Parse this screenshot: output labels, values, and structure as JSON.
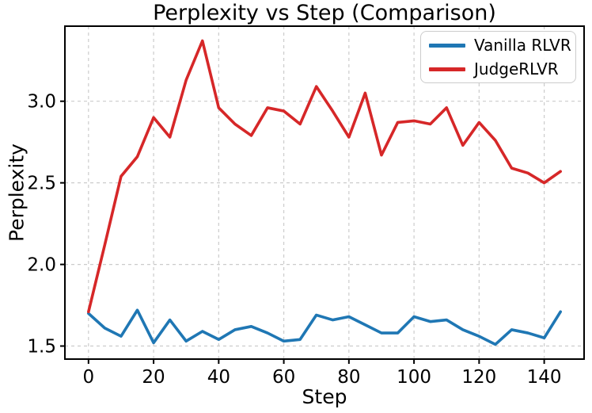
{
  "chart_data": {
    "type": "line",
    "title": "Perplexity vs Step (Comparison)",
    "xlabel": "Step",
    "ylabel": "Perplexity",
    "x": [
      0,
      5,
      10,
      15,
      20,
      25,
      30,
      35,
      40,
      45,
      50,
      55,
      60,
      65,
      70,
      75,
      80,
      85,
      90,
      95,
      100,
      105,
      110,
      115,
      120,
      125,
      130,
      135,
      140,
      145
    ],
    "series": [
      {
        "name": "Vanilla RLVR",
        "color": "#1f77b4",
        "values": [
          1.7,
          1.61,
          1.56,
          1.72,
          1.52,
          1.66,
          1.53,
          1.59,
          1.54,
          1.6,
          1.62,
          1.58,
          1.53,
          1.54,
          1.69,
          1.66,
          1.68,
          1.63,
          1.58,
          1.58,
          1.68,
          1.65,
          1.66,
          1.6,
          1.56,
          1.51,
          1.6,
          1.58,
          1.55,
          1.71
        ]
      },
      {
        "name": "JudgeRLVR",
        "color": "#d62728",
        "values": [
          1.71,
          2.12,
          2.54,
          2.66,
          2.9,
          2.78,
          3.13,
          3.37,
          2.96,
          2.86,
          2.79,
          2.96,
          2.94,
          2.86,
          3.09,
          2.94,
          2.78,
          3.05,
          2.67,
          2.87,
          2.88,
          2.86,
          2.96,
          2.73,
          2.87,
          2.76,
          2.59,
          2.56,
          2.5,
          2.57
        ]
      }
    ],
    "x_ticks": [
      0,
      20,
      40,
      60,
      80,
      100,
      120,
      140
    ],
    "y_ticks": [
      1.5,
      2.0,
      2.5,
      3.0
    ],
    "xlim": [
      -7.25,
      152.25
    ],
    "ylim": [
      1.42,
      3.46
    ],
    "grid": true,
    "grid_color": "#cccccc",
    "spine_color": "#000000",
    "legend_position": "upper right"
  }
}
